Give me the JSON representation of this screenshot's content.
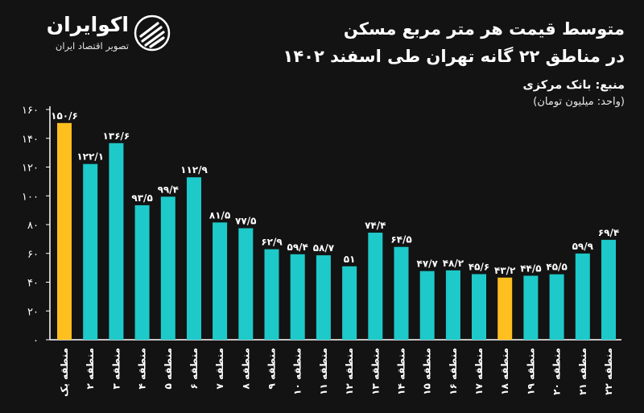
{
  "brand": {
    "name": "اکوایران",
    "tagline": "تصویر اقتصاد ایران",
    "icon": "ekoiran-logo-icon"
  },
  "header": {
    "title_line1": "متوسط قیمت هر متر مربع مسکن",
    "title_line2": "در مناطق ۲۲ گانه تهران طی اسفند ۱۴۰۲",
    "source": "منبع: بانک مرکزی",
    "unit": "(واحد: میلیون تومان)"
  },
  "colors": {
    "background": "#131313",
    "bar": "#1ec9c9",
    "highlight": "#ffbf1f",
    "axis": "#ffffff"
  },
  "chart_data": {
    "type": "bar",
    "ylim": [
      0,
      160
    ],
    "yticks": [
      0,
      20,
      40,
      60,
      80,
      100,
      120,
      140,
      160
    ],
    "ytick_labels": [
      "۰",
      "۲۰",
      "۴۰",
      "۶۰",
      "۸۰",
      "۱۰۰",
      "۱۲۰",
      "۱۴۰",
      "۱۶۰"
    ],
    "grid": false,
    "categories": [
      "منطقه یک",
      "منطقه ۲",
      "منطقه ۳",
      "منطقه ۴",
      "منطقه ۵",
      "منطقه ۶",
      "منطقه ۷",
      "منطقه ۸",
      "منطقه ۹",
      "منطقه ۱۰",
      "منطقه ۱۱",
      "منطقه ۱۲",
      "منطقه ۱۳",
      "منطقه ۱۴",
      "منطقه ۱۵",
      "منطقه ۱۶",
      "منطقه ۱۷",
      "منطقه ۱۸",
      "منطقه ۱۹",
      "منطقه ۲۰",
      "منطقه ۲۱",
      "منطقه ۲۲"
    ],
    "values": [
      150.6,
      122.1,
      136.6,
      93.5,
      99.4,
      112.9,
      81.5,
      77.5,
      62.9,
      59.4,
      58.7,
      51,
      74.4,
      64.5,
      47.7,
      48.2,
      45.6,
      43.2,
      44.5,
      45.5,
      59.9,
      69.4
    ],
    "value_labels": [
      "۱۵۰/۶",
      "۱۲۲/۱",
      "۱۳۶/۶",
      "۹۳/۵",
      "۹۹/۴",
      "۱۱۲/۹",
      "۸۱/۵",
      "۷۷/۵",
      "۶۲/۹",
      "۵۹/۴",
      "۵۸/۷",
      "۵۱",
      "۷۴/۴",
      "۶۴/۵",
      "۴۷/۷",
      "۴۸/۲",
      "۴۵/۶",
      "۴۳/۲",
      "۴۴/۵",
      "۴۵/۵",
      "۵۹/۹",
      "۶۹/۴"
    ],
    "highlighted": [
      0,
      17
    ]
  }
}
